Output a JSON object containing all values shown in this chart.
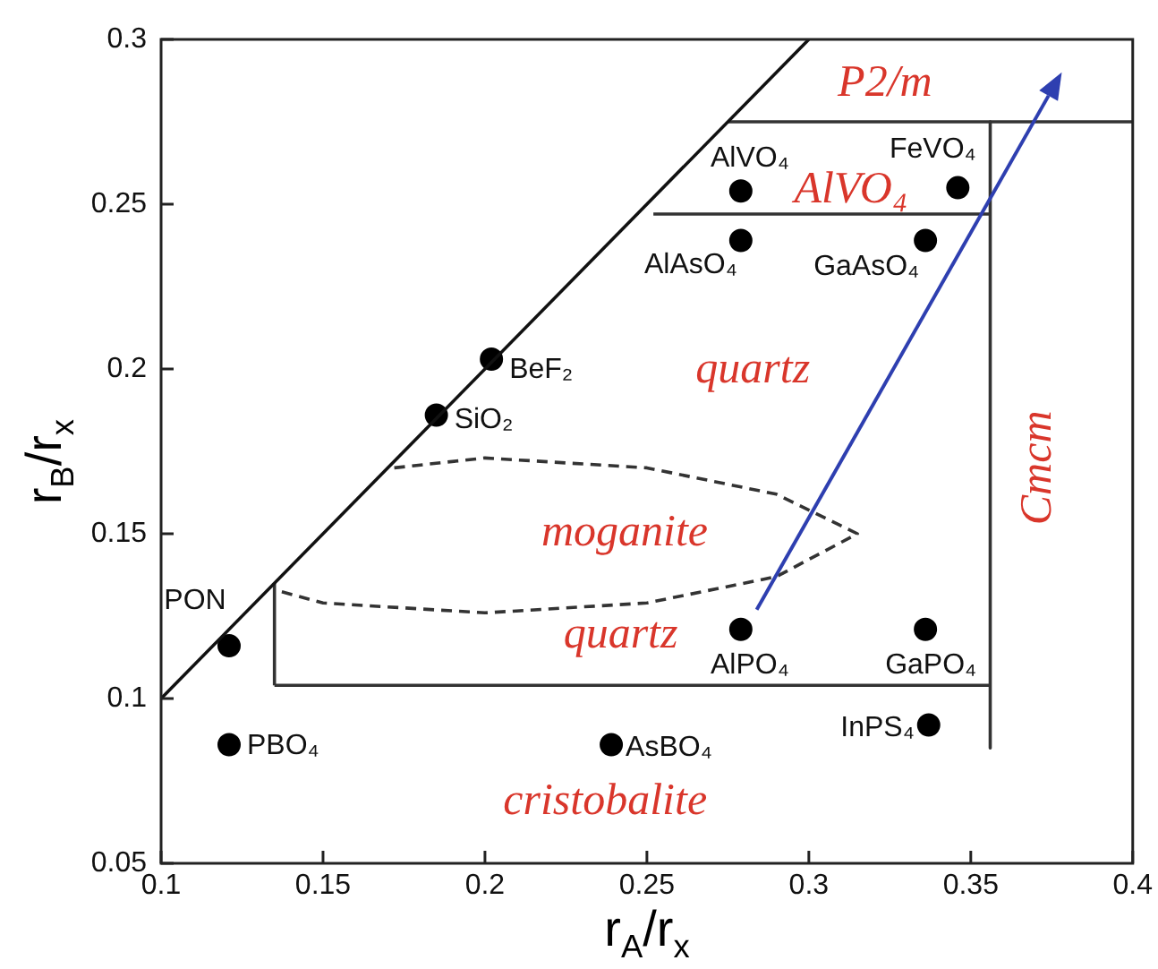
{
  "chart_data": {
    "type": "scatter",
    "xlabel": "r$_{A}$/r$_{x}$",
    "ylabel": "r$_{B}$/r$_{x}$",
    "xlim": [
      0.1,
      0.4
    ],
    "xticks": [
      0.1,
      0.15,
      0.2,
      0.25,
      0.3,
      0.35,
      0.4
    ],
    "ylim": [
      0.05,
      0.3
    ],
    "yticks": [
      0.05,
      0.1,
      0.15,
      0.2,
      0.25,
      0.3
    ],
    "grid": false,
    "legend": false,
    "annotations": [
      "P2/m",
      "AlVO₄",
      "quartz",
      "moganite",
      "quartz",
      "cristobalite",
      "Cmcm"
    ],
    "series": [
      {
        "type": "line",
        "color": "#111111",
        "marker": "none",
        "line_style": "solid",
        "x": [
          0.1,
          0.3
        ],
        "values": [
          0.1,
          0.3
        ]
      },
      {
        "type": "line",
        "color": "#333333",
        "marker": "none",
        "line_style": "solid",
        "x": [
          0.275,
          0.4
        ],
        "values": [
          0.275,
          0.275
        ]
      },
      {
        "type": "line",
        "color": "#333333",
        "marker": "none",
        "line_style": "solid",
        "x": [
          0.252,
          0.356
        ],
        "values": [
          0.247,
          0.247
        ]
      },
      {
        "type": "line",
        "color": "#333333",
        "marker": "none",
        "line_style": "solid",
        "x": [
          0.356,
          0.356
        ],
        "values": [
          0.275,
          0.085
        ]
      },
      {
        "type": "line",
        "color": "#333333",
        "marker": "none",
        "line_style": "solid",
        "x": [
          0.135,
          0.356
        ],
        "values": [
          0.104,
          0.104
        ]
      },
      {
        "type": "line",
        "color": "#333333",
        "marker": "none",
        "line_style": "solid",
        "x": [
          0.135,
          0.135
        ],
        "values": [
          0.104,
          0.135
        ]
      },
      {
        "type": "line",
        "color": "#333333",
        "marker": "none",
        "line_style": "dashed",
        "x": [
          0.172,
          0.2,
          0.25,
          0.29,
          0.315,
          0.29,
          0.25,
          0.2,
          0.15,
          0.135
        ],
        "values": [
          0.17,
          0.173,
          0.17,
          0.162,
          0.15,
          0.137,
          0.129,
          0.126,
          0.129,
          0.133
        ]
      },
      {
        "name": "PON",
        "color": "#000000",
        "marker": "circle",
        "x": [
          0.121
        ],
        "values": [
          0.116
        ]
      },
      {
        "name": "PBO₄",
        "color": "#000000",
        "marker": "circle",
        "x": [
          0.121
        ],
        "values": [
          0.086
        ]
      },
      {
        "name": "SiO₂",
        "color": "#000000",
        "marker": "circle",
        "x": [
          0.185
        ],
        "values": [
          0.186
        ]
      },
      {
        "name": "BeF₂",
        "color": "#000000",
        "marker": "circle",
        "x": [
          0.202
        ],
        "values": [
          0.203
        ]
      },
      {
        "name": "AlVO₄",
        "color": "#000000",
        "marker": "circle",
        "x": [
          0.279
        ],
        "values": [
          0.254
        ]
      },
      {
        "name": "FeVO₄",
        "color": "#000000",
        "marker": "circle",
        "x": [
          0.346
        ],
        "values": [
          0.255
        ]
      },
      {
        "name": "AlAsO₄",
        "color": "#000000",
        "marker": "circle",
        "x": [
          0.279
        ],
        "values": [
          0.239
        ]
      },
      {
        "name": "GaAsO₄",
        "color": "#000000",
        "marker": "circle",
        "x": [
          0.336
        ],
        "values": [
          0.239
        ]
      },
      {
        "name": "AlPO₄",
        "color": "#000000",
        "marker": "circle",
        "x": [
          0.279
        ],
        "values": [
          0.121
        ]
      },
      {
        "name": "GaPO₄",
        "color": "#000000",
        "marker": "circle",
        "x": [
          0.336
        ],
        "values": [
          0.121
        ]
      },
      {
        "name": "InPS₄",
        "color": "#000000",
        "marker": "circle",
        "x": [
          0.337
        ],
        "values": [
          0.092
        ]
      },
      {
        "name": "AsBO₄",
        "color": "#000000",
        "marker": "circle",
        "x": [
          0.239
        ],
        "values": [
          0.086
        ]
      }
    ]
  }
}
